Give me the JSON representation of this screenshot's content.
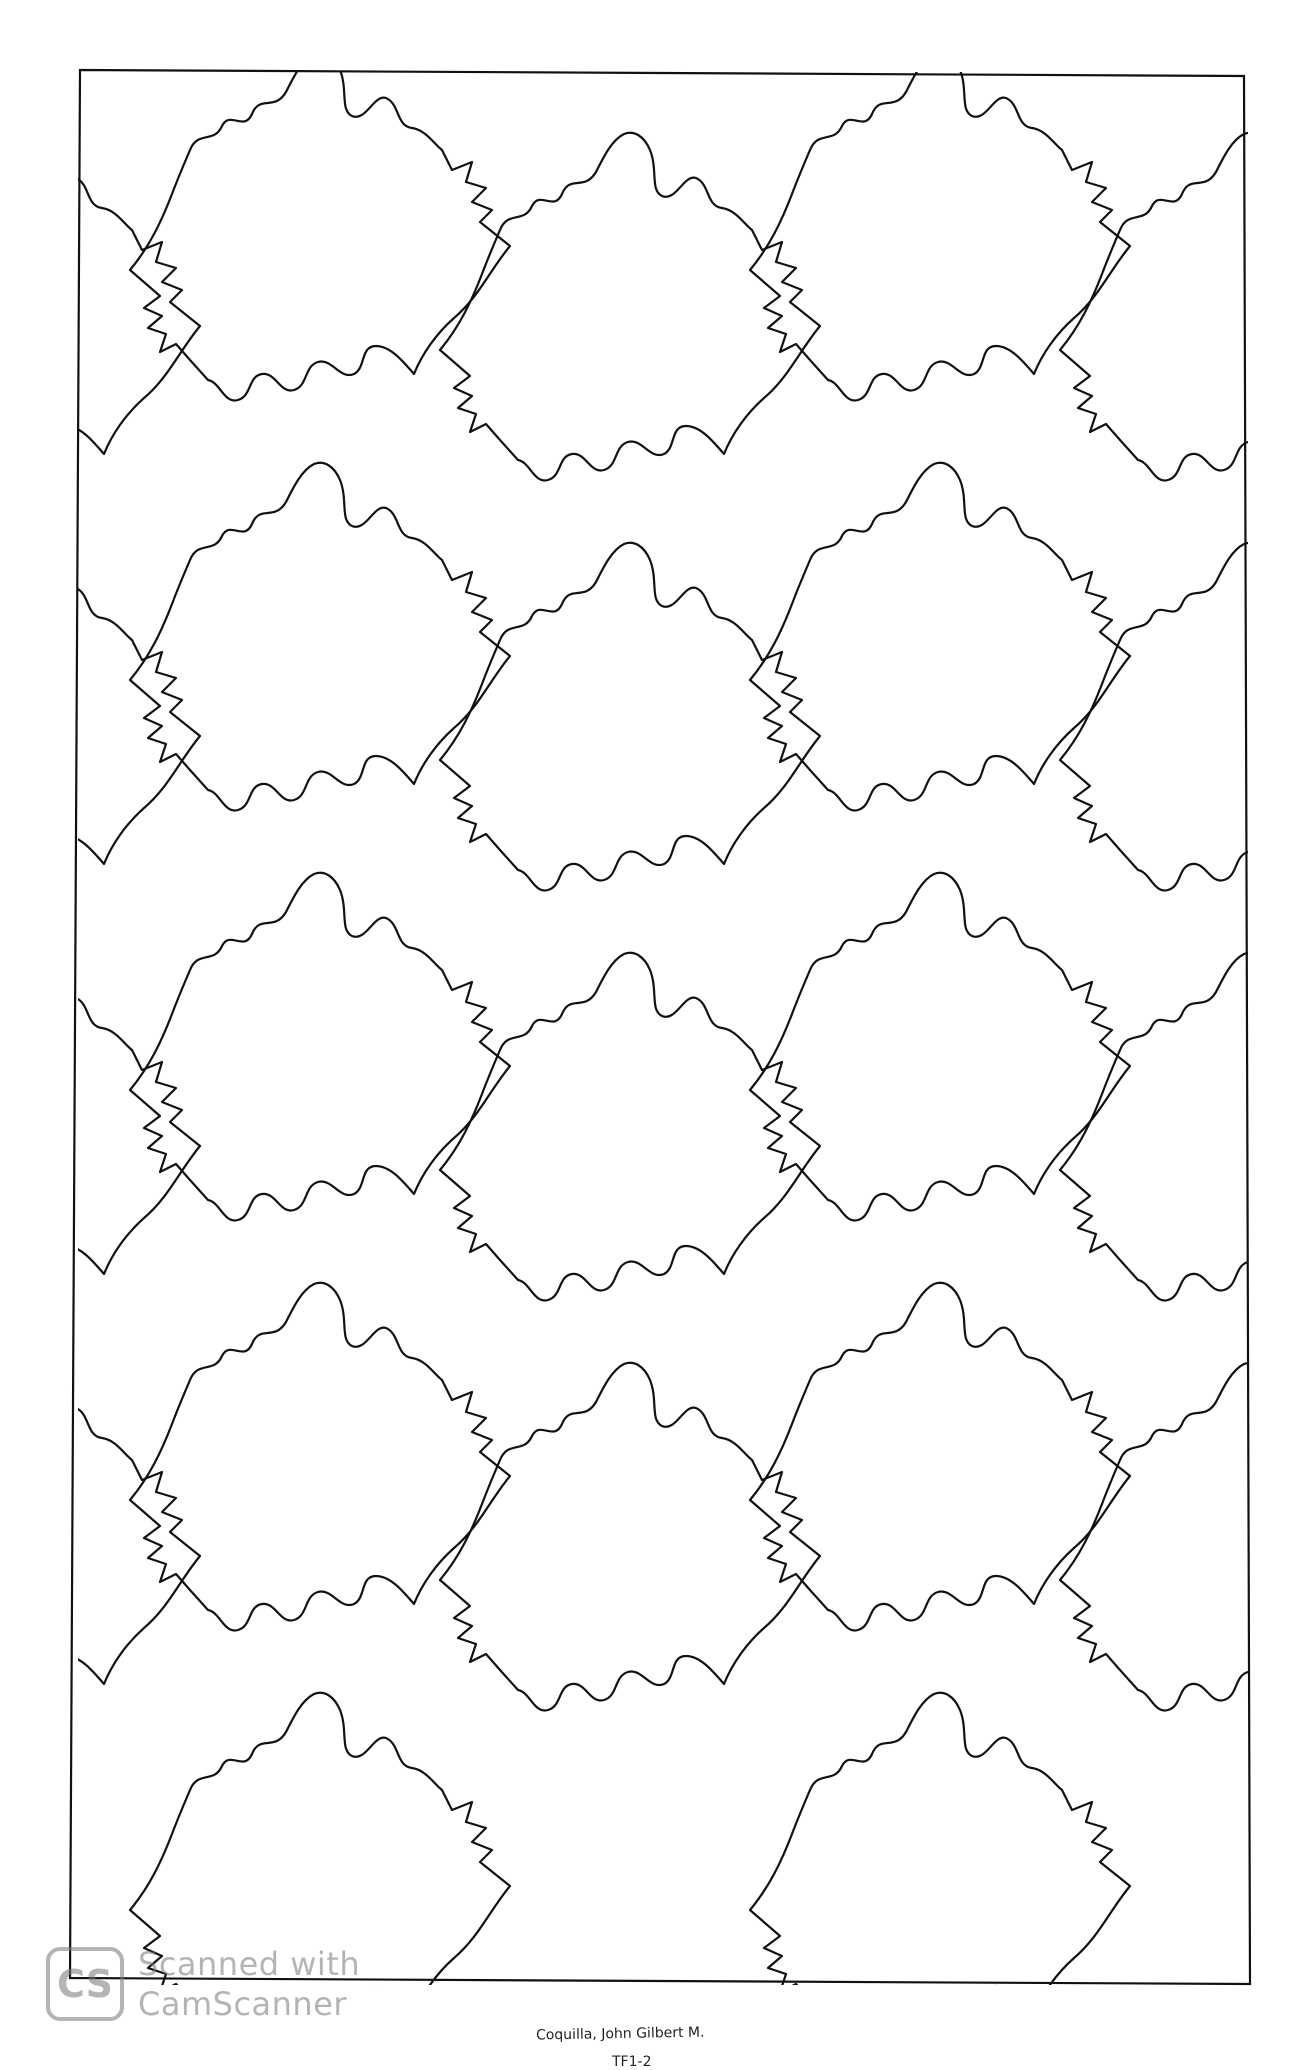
{
  "drawing": {
    "stroke_color": "#111111",
    "paper_color": "#ffffff"
  },
  "watermark": {
    "logo": "CS",
    "line1": "Scanned with",
    "line2": "CamScanner",
    "color": "#777777"
  },
  "caption": {
    "author": "Coquilla, John Gilbert M.",
    "section": "TF1-2"
  }
}
